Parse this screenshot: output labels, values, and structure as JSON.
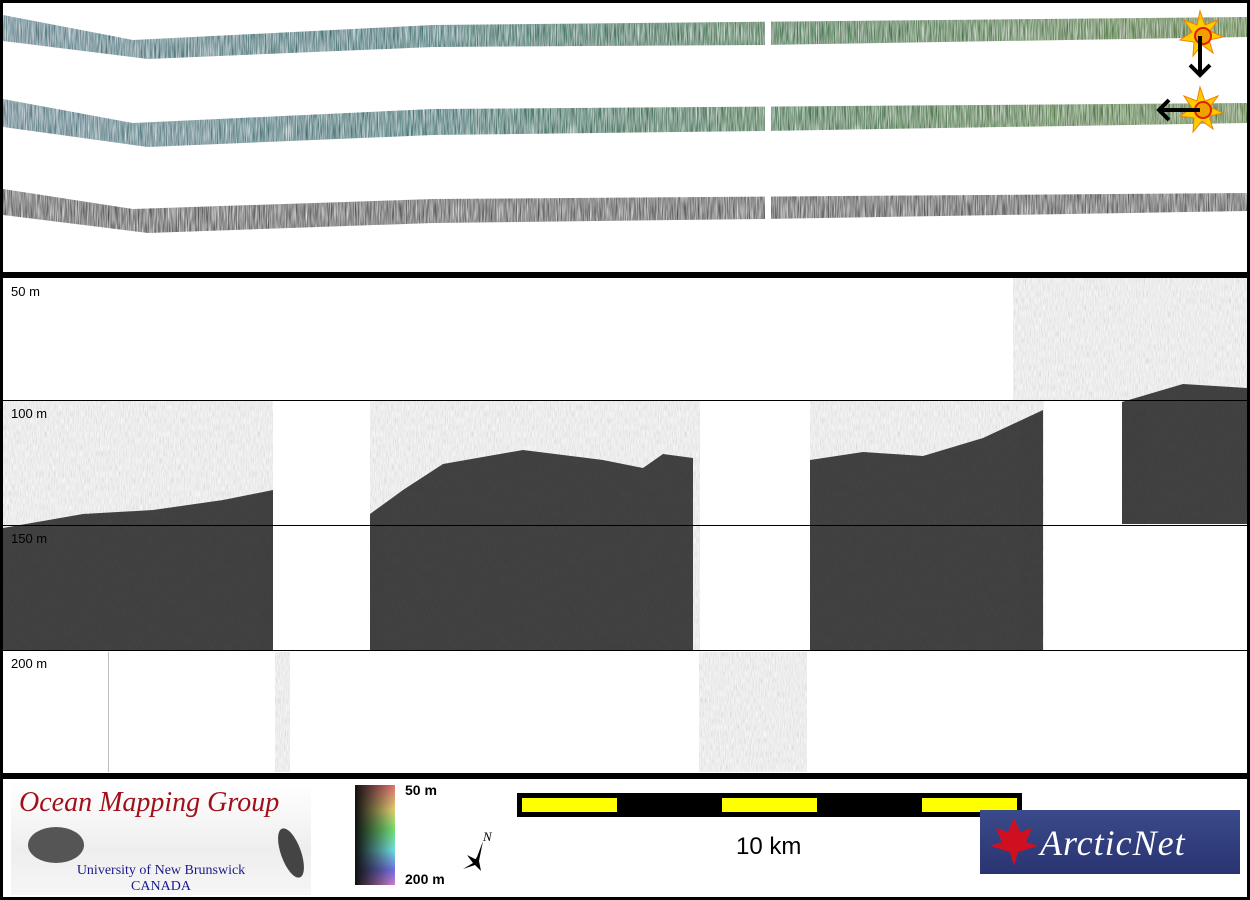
{
  "echogram": {
    "depth_labels": [
      "50 m",
      "100 m",
      "150 m",
      "200 m"
    ]
  },
  "legend": {
    "logo_left": {
      "title": "Ocean Mapping Group",
      "line1": "University of New Brunswick",
      "line2": "CANADA"
    },
    "colorbar": {
      "top_label": "50 m",
      "bottom_label": "200 m",
      "colors": [
        "#e07070",
        "#e0d070",
        "#70e070",
        "#70e0e0",
        "#7070e0",
        "#d080d0"
      ]
    },
    "north_arrow_label": "N",
    "scale_bar": {
      "label": "10 km",
      "colors": [
        "#000000",
        "#ffff00"
      ]
    },
    "logo_right": {
      "text": "ArcticNet"
    }
  },
  "swath": {
    "colors": {
      "left": "#5a8a9a",
      "right": "#5a8a4a",
      "backscatter": "#777777"
    },
    "markers": [
      "sun-marker-down-arrow",
      "sun-marker-left-arrow"
    ]
  }
}
